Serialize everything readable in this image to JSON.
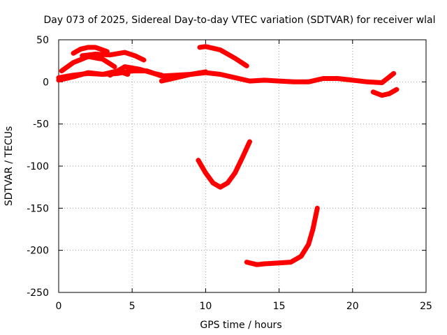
{
  "chart_data": {
    "type": "line",
    "title": "Day 073 of 2025, Sidereal Day-to-day VTEC variation (SDTVAR) for receiver wlal",
    "xlabel": "GPS time / hours",
    "ylabel": "SDTVAR / TECUs",
    "xlim": [
      0,
      25
    ],
    "ylim": [
      -250,
      50
    ],
    "xticks": [
      0,
      5,
      10,
      15,
      20,
      25
    ],
    "yticks": [
      50,
      0,
      -50,
      -100,
      -150,
      -200,
      -250
    ],
    "xtick_labels": [
      "0",
      "5",
      "10",
      "15",
      "20",
      "25"
    ],
    "ytick_labels": [
      "50",
      "0",
      "-50",
      "-100",
      "-150",
      "-200",
      "-250"
    ],
    "grid": true,
    "color": "#ff0000",
    "series": [
      {
        "name": "s1",
        "x": [
          1.0,
          1.5,
          2.0,
          2.5,
          3.0,
          3.3
        ],
        "y": [
          34,
          39,
          41,
          41,
          38,
          36
        ]
      },
      {
        "name": "s2",
        "x": [
          0.2,
          1.0,
          2.0,
          3.0,
          3.8
        ],
        "y": [
          13,
          23,
          30,
          27,
          18
        ]
      },
      {
        "name": "s3",
        "x": [
          1.6,
          2.5,
          3.5,
          4.5,
          5.2,
          5.8
        ],
        "y": [
          31,
          33,
          32,
          35,
          31,
          26
        ]
      },
      {
        "name": "s4",
        "x": [
          0.0,
          1.0,
          2.0,
          3.0,
          4.0,
          4.7
        ],
        "y": [
          2,
          6,
          11,
          9,
          13,
          9
        ]
      },
      {
        "name": "s5",
        "x": [
          3.5,
          4.5,
          5.5,
          6.5,
          7.0
        ],
        "y": [
          8,
          18,
          15,
          10,
          8
        ]
      },
      {
        "name": "s6",
        "x": [
          7.0,
          8.0,
          9.0,
          10.0,
          11.0,
          12.0,
          13.0,
          14.0,
          15.0,
          16.0,
          17.0,
          18.0,
          19.0,
          20.0,
          21.0,
          22.0,
          22.8
        ],
        "y": [
          1,
          5,
          9,
          11,
          9,
          5,
          1,
          2,
          1,
          0,
          0,
          4,
          4,
          2,
          0,
          -1,
          10
        ]
      },
      {
        "name": "s7",
        "x": [
          0.0,
          1.0,
          2.0,
          3.0,
          4.0,
          5.0,
          6.0,
          7.0,
          8.0,
          9.0,
          10.0
        ],
        "y": [
          5,
          8,
          10,
          9,
          10,
          13,
          13,
          7,
          8,
          9,
          12
        ]
      },
      {
        "name": "s8",
        "x": [
          9.6,
          10.0,
          11.0,
          12.0,
          12.8
        ],
        "y": [
          41,
          42,
          38,
          28,
          19
        ]
      },
      {
        "name": "s9",
        "x": [
          21.4,
          22.0,
          22.5,
          23.0
        ],
        "y": [
          -12,
          -16,
          -14,
          -9
        ]
      },
      {
        "name": "s10",
        "x": [
          9.5,
          10.0,
          10.5,
          11.0,
          11.5,
          12.0,
          12.5,
          13.0
        ],
        "y": [
          -93,
          -108,
          -120,
          -125,
          -120,
          -108,
          -90,
          -71
        ]
      },
      {
        "name": "s11",
        "x": [
          12.8,
          13.5,
          14.0,
          15.0,
          15.8,
          16.5,
          17.0,
          17.3,
          17.6
        ],
        "y": [
          -214,
          -217,
          -216,
          -215,
          -214,
          -207,
          -193,
          -175,
          -150
        ]
      }
    ]
  }
}
